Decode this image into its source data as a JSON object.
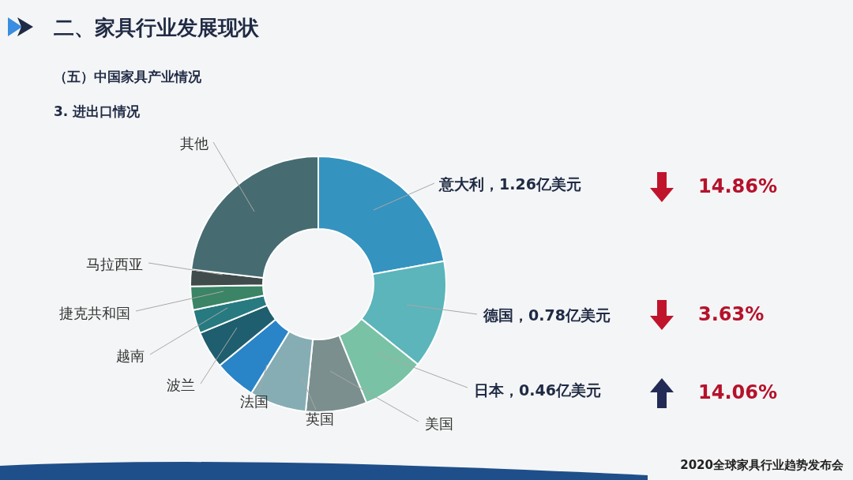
{
  "chart_data": {
    "type": "donut",
    "title": "二、家具行业发展现状",
    "subtitle": "（五）中国家具产业情况",
    "categories": [
      "意大利，1.26亿美元",
      "德国，0.78亿美元",
      "日本，0.46亿美元",
      "美国",
      "英国",
      "法国",
      "波兰",
      "越南",
      "捷克共和国",
      "马拉西亚",
      "其他"
    ],
    "values": [
      1.26,
      0.78,
      0.46,
      0.44,
      0.41,
      0.3,
      0.27,
      0.17,
      0.17,
      0.12,
      1.32
    ],
    "colors": [
      "#3593bf",
      "#5bb5bb",
      "#79c2a5",
      "#7a8f8e",
      "#86adb3",
      "#2a84c8",
      "#1f5e6e",
      "#277a80",
      "#3b8466",
      "#404b4b",
      "#466c72"
    ],
    "annotations": [
      "3. 进出口情况",
      "14.86%",
      "3.63%",
      "14.06%",
      "2020全球家具行业趋势发布会"
    ]
  }
}
